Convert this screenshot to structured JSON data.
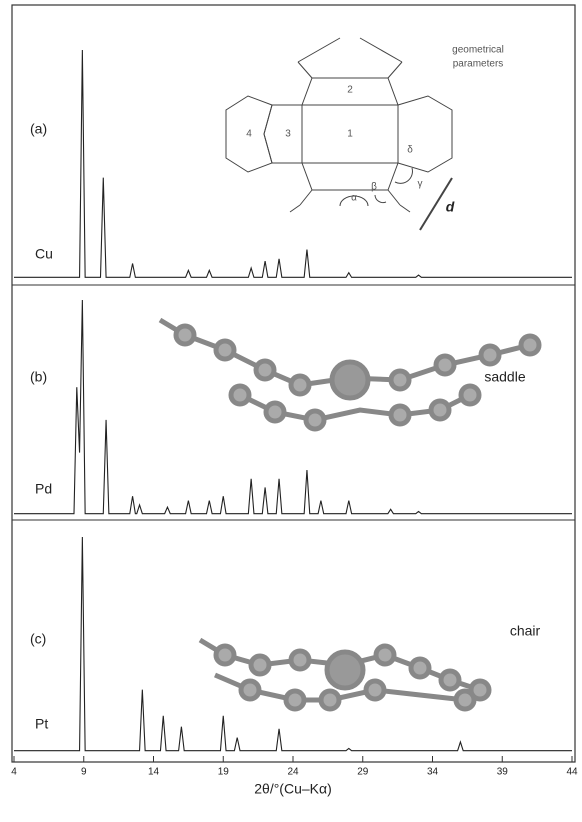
{
  "chart_data": [
    {
      "type": "line",
      "panel_label": "(a)",
      "metal": "Cu",
      "color": "#222",
      "xlim": [
        4,
        44
      ],
      "ylim": [
        0,
        100
      ],
      "x": [
        4,
        8.7,
        8.9,
        9.1,
        10.2,
        10.4,
        10.6,
        12.3,
        12.5,
        12.7,
        16.3,
        16.5,
        16.7,
        17.8,
        18,
        18.2,
        20.8,
        21,
        21.2,
        21.8,
        22,
        22.2,
        22.8,
        23,
        23.2,
        24.8,
        25,
        25.2,
        27.8,
        28,
        28.2,
        32.8,
        33,
        33.2,
        44
      ],
      "values": [
        2,
        2,
        100,
        2,
        2,
        45,
        2,
        2,
        8,
        2,
        2,
        5,
        2,
        2,
        5,
        2,
        2,
        6,
        2,
        2,
        9,
        2,
        2,
        10,
        2,
        2,
        14,
        2,
        2,
        4,
        2,
        2,
        3,
        2,
        2
      ]
    },
    {
      "type": "line",
      "panel_label": "(b)",
      "metal": "Pd",
      "annotation": "saddle",
      "color": "#222",
      "xlim": [
        4,
        44
      ],
      "ylim": [
        0,
        100
      ],
      "x": [
        4,
        8.3,
        8.5,
        8.7,
        8.9,
        9.1,
        10.4,
        10.6,
        10.8,
        12.3,
        12.5,
        12.7,
        12.8,
        13,
        13.2,
        14.8,
        15,
        15.2,
        16.3,
        16.5,
        16.7,
        17.8,
        18,
        18.2,
        18.8,
        19,
        19.2,
        20.8,
        21,
        21.2,
        21.8,
        22,
        22.2,
        22.8,
        23,
        23.2,
        24.8,
        25,
        25.2,
        25.8,
        26,
        26.2,
        27.8,
        28,
        28.2,
        30.8,
        31,
        31.2,
        32.8,
        33,
        33.2,
        41.8,
        42,
        42.2,
        44
      ],
      "values": [
        2,
        2,
        60,
        30,
        100,
        2,
        2,
        45,
        2,
        2,
        10,
        2,
        2,
        6,
        2,
        2,
        5,
        2,
        2,
        8,
        2,
        2,
        8,
        2,
        2,
        10,
        2,
        2,
        18,
        2,
        2,
        14,
        2,
        2,
        18,
        2,
        2,
        22,
        2,
        2,
        8,
        2,
        2,
        8,
        2,
        2,
        4,
        2,
        2,
        3,
        2,
        2,
        2,
        2,
        2
      ]
    },
    {
      "type": "line",
      "panel_label": "(c)",
      "metal": "Pt",
      "annotation": "chair",
      "color": "#222",
      "xlim": [
        4,
        44
      ],
      "ylim": [
        0,
        100
      ],
      "xticks": [
        4,
        9,
        14,
        19,
        24,
        29,
        34,
        39,
        44
      ],
      "x_label": "2θ/°(Cu–Kα)",
      "x": [
        4,
        8.7,
        8.9,
        9.1,
        13,
        13.2,
        13.4,
        14.5,
        14.7,
        14.9,
        15.8,
        16,
        16.2,
        18.8,
        19,
        19.2,
        19.8,
        20,
        20.2,
        22.8,
        23,
        23.2,
        27.8,
        28,
        28.2,
        35.8,
        36,
        36.2,
        44
      ],
      "values": [
        2,
        2,
        100,
        2,
        2,
        30,
        2,
        2,
        18,
        2,
        2,
        13,
        2,
        2,
        18,
        2,
        2,
        8,
        2,
        2,
        12,
        2,
        2,
        3,
        2,
        2,
        6,
        2,
        2
      ]
    }
  ],
  "diagram": {
    "title_lines": [
      "geometrical",
      "parameters"
    ],
    "rings": [
      "1",
      "2",
      "3",
      "4"
    ],
    "angles": [
      "α",
      "β",
      "γ",
      "δ"
    ],
    "distance": "d"
  }
}
